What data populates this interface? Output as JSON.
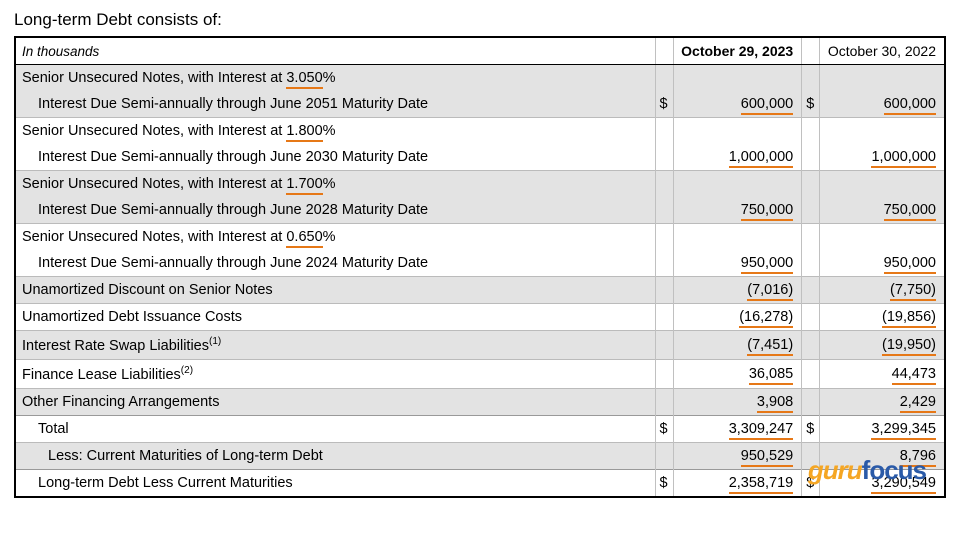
{
  "title": "Long-term Debt consists of:",
  "unit_label": "In thousands",
  "col_headers": {
    "c2023": "October 29, 2023",
    "c2022": "October 30, 2022"
  },
  "rows": {
    "r0": {
      "desc": "Senior Unsecured Notes, with Interest at ",
      "rate": "3.050",
      "pct": "%"
    },
    "r1": {
      "desc": "Interest Due Semi-annually through June 2051 Maturity Date",
      "cur": "$",
      "v23": "600,000",
      "cur2": "$",
      "v22": "600,000"
    },
    "r2": {
      "desc": "Senior Unsecured Notes, with Interest at ",
      "rate": "1.800",
      "pct": "%"
    },
    "r3": {
      "desc": "Interest Due Semi-annually through June 2030 Maturity Date",
      "v23": "1,000,000",
      "v22": "1,000,000"
    },
    "r4": {
      "desc": "Senior Unsecured Notes, with Interest at ",
      "rate": "1.700",
      "pct": "%"
    },
    "r5": {
      "desc": "Interest Due Semi-annually through June 2028 Maturity Date",
      "v23": "750,000",
      "v22": "750,000"
    },
    "r6": {
      "desc": "Senior Unsecured Notes, with Interest at ",
      "rate": "0.650",
      "pct": "%"
    },
    "r7": {
      "desc": "Interest Due Semi-annually through June 2024 Maturity Date",
      "v23": "950,000",
      "v22": "950,000"
    },
    "r8": {
      "desc": "Unamortized Discount on Senior Notes",
      "v23": "(7,016)",
      "v22": "(7,750)"
    },
    "r9": {
      "desc": "Unamortized Debt Issuance Costs",
      "v23": "(16,278)",
      "v22": "(19,856)"
    },
    "r10": {
      "desc": "Interest Rate Swap Liabilities",
      "sup": "(1)",
      "v23": "(7,451)",
      "v22": "(19,950)"
    },
    "r11": {
      "desc": "Finance Lease Liabilities",
      "sup": "(2)",
      "v23": "36,085",
      "v22": "44,473"
    },
    "r12": {
      "desc": "Other Financing Arrangements",
      "v23": "3,908",
      "v22": "2,429"
    },
    "r13": {
      "desc": "Total",
      "cur": "$",
      "v23": "3,309,247",
      "cur2": "$",
      "v22": "3,299,345"
    },
    "r14": {
      "desc": "Less: Current Maturities of Long-term Debt",
      "v23": "950,529",
      "v22": "8,796"
    },
    "r15": {
      "desc": "Long-term Debt Less Current Maturities",
      "cur": "$",
      "v23": "2,358,719",
      "cur2": "$",
      "v22": "3,290,549"
    }
  },
  "watermark": {
    "part1": "guru",
    "part2": "focus"
  },
  "style": {
    "highlight_color": "#e67817",
    "shade_color": "#e3e3e3",
    "border_color": "#000000",
    "watermark_orange": "#f5a623",
    "watermark_blue": "#2a5aa8"
  }
}
